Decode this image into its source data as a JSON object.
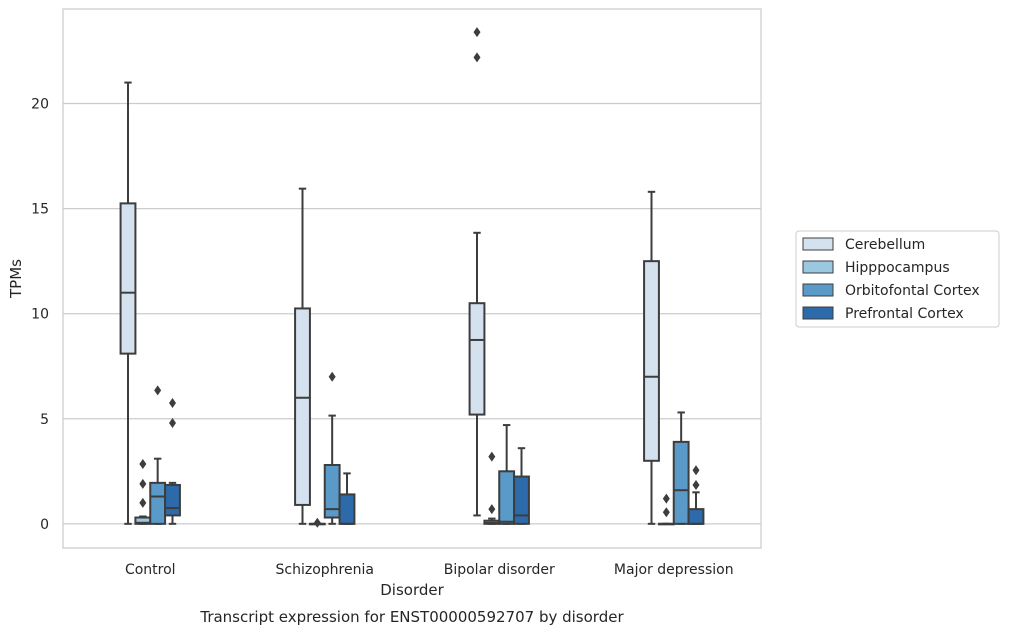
{
  "chart_data": {
    "type": "box",
    "title": "Transcript expression for ENST00000592707 by disorder",
    "xlabel": "Disorder",
    "ylabel": "TPMs",
    "ylim": [
      -1.15,
      24.5
    ],
    "yticks": [
      0,
      5,
      10,
      15,
      20
    ],
    "grid": "horizontal",
    "legend_position": "right",
    "categories": [
      "Control",
      "Schizophrenia",
      "Bipolar disorder",
      "Major depression"
    ],
    "series": [
      {
        "name": "Cerebellum",
        "color": "#d4e2f0",
        "boxes": [
          {
            "whisker_low": 0,
            "q1": 8.1,
            "median": 11.0,
            "q3": 15.25,
            "whisker_high": 21.0,
            "outliers": []
          },
          {
            "whisker_low": 0,
            "q1": 0.9,
            "median": 6.0,
            "q3": 10.25,
            "whisker_high": 15.95,
            "outliers": []
          },
          {
            "whisker_low": 0.4,
            "q1": 5.2,
            "median": 8.75,
            "q3": 10.5,
            "whisker_high": 13.85,
            "outliers": [
              22.2,
              23.4
            ]
          },
          {
            "whisker_low": 0,
            "q1": 3.0,
            "median": 7.0,
            "q3": 12.5,
            "whisker_high": 15.8,
            "outliers": []
          }
        ]
      },
      {
        "name": "Hipppocampus",
        "color": "#9ac8e0",
        "boxes": [
          {
            "whisker_low": 0,
            "q1": 0.0,
            "median": 0.05,
            "q3": 0.3,
            "whisker_high": 0.35,
            "outliers": [
              1.0,
              1.9,
              2.85
            ]
          },
          {
            "whisker_low": 0,
            "q1": 0,
            "median": 0,
            "q3": 0,
            "whisker_high": 0,
            "outliers": [
              0.05
            ]
          },
          {
            "whisker_low": 0,
            "q1": 0.0,
            "median": 0.05,
            "q3": 0.15,
            "whisker_high": 0.25,
            "outliers": [
              0.7,
              3.2
            ]
          },
          {
            "whisker_low": 0,
            "q1": 0,
            "median": 0,
            "q3": 0,
            "whisker_high": 0,
            "outliers": [
              0.55,
              1.2
            ]
          }
        ]
      },
      {
        "name": "Orbitofontal Cortex",
        "color": "#5a9ac8",
        "boxes": [
          {
            "whisker_low": 0,
            "q1": 0.0,
            "median": 1.3,
            "q3": 1.95,
            "whisker_high": 3.1,
            "outliers": [
              6.35
            ]
          },
          {
            "whisker_low": 0,
            "q1": 0.3,
            "median": 0.7,
            "q3": 2.8,
            "whisker_high": 5.15,
            "outliers": [
              7.0
            ]
          },
          {
            "whisker_low": 0,
            "q1": 0.0,
            "median": 0.1,
            "q3": 2.5,
            "whisker_high": 4.7,
            "outliers": []
          },
          {
            "whisker_low": 0,
            "q1": 0.0,
            "median": 1.6,
            "q3": 3.9,
            "whisker_high": 5.3,
            "outliers": []
          }
        ]
      },
      {
        "name": "Prefrontal Cortex",
        "color": "#2c6aaa",
        "boxes": [
          {
            "whisker_low": 0,
            "q1": 0.4,
            "median": 0.75,
            "q3": 1.85,
            "whisker_high": 1.95,
            "outliers": [
              4.8,
              5.75
            ]
          },
          {
            "whisker_low": 0,
            "q1": 0.0,
            "median": 0.0,
            "q3": 1.4,
            "whisker_high": 2.4,
            "outliers": []
          },
          {
            "whisker_low": 0,
            "q1": 0.0,
            "median": 0.4,
            "q3": 2.25,
            "whisker_high": 3.6,
            "outliers": []
          },
          {
            "whisker_low": 0,
            "q1": 0.0,
            "median": 0.0,
            "q3": 0.7,
            "whisker_high": 1.5,
            "outliers": [
              1.85,
              2.55
            ]
          }
        ]
      }
    ]
  }
}
